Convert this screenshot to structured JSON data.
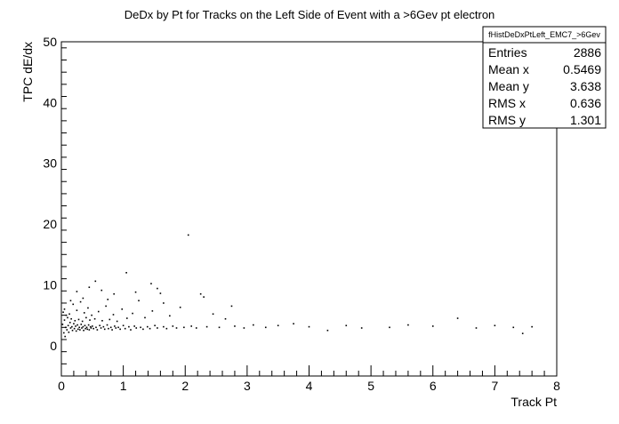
{
  "chart_data": {
    "type": "scatter",
    "title": "DeDx by Pt for Tracks on the Left Side of Event with a >6Gev pt electron",
    "xlabel": "Track Pt",
    "ylabel": "TPC dE/dx",
    "xlim": [
      0,
      8
    ],
    "ylim": [
      -5,
      50
    ],
    "x_ticks": [
      "0",
      "1",
      "2",
      "3",
      "4",
      "5",
      "6",
      "7",
      "8"
    ],
    "y_ticks": [
      "0",
      "10",
      "20",
      "30",
      "40",
      "50"
    ],
    "x_tick_values": [
      0,
      1,
      2,
      3,
      4,
      5,
      6,
      7,
      8
    ],
    "y_tick_values": [
      0,
      10,
      20,
      30,
      40,
      50
    ],
    "grid": false,
    "marker_color": "#000000",
    "stats_box": {
      "name": "fHistDeDxPtLeft_EMC7_>6Gev",
      "position": "top-right",
      "rows": [
        {
          "label": "Entries",
          "value": "2886"
        },
        {
          "label": "Mean x",
          "value": "0.5469"
        },
        {
          "label": "Mean y",
          "value": "3.638"
        },
        {
          "label": "RMS x",
          "value": "0.636"
        },
        {
          "label": "RMS y",
          "value": "1.301"
        }
      ]
    },
    "points": [
      [
        0.02,
        3.5
      ],
      [
        0.03,
        5.5
      ],
      [
        0.04,
        2.1
      ],
      [
        0.05,
        6.0
      ],
      [
        0.05,
        4.2
      ],
      [
        0.06,
        1.5
      ],
      [
        0.07,
        3.0
      ],
      [
        0.08,
        5.0
      ],
      [
        0.09,
        2.6
      ],
      [
        0.1,
        4.6
      ],
      [
        0.11,
        3.3
      ],
      [
        0.12,
        2.2
      ],
      [
        0.13,
        5.2
      ],
      [
        0.14,
        3.8
      ],
      [
        0.15,
        2.9
      ],
      [
        0.16,
        4.4
      ],
      [
        0.17,
        3.1
      ],
      [
        0.18,
        2.5
      ],
      [
        0.19,
        6.8
      ],
      [
        0.2,
        3.6
      ],
      [
        0.21,
        2.8
      ],
      [
        0.22,
        4.1
      ],
      [
        0.23,
        3.2
      ],
      [
        0.24,
        2.4
      ],
      [
        0.25,
        5.8
      ],
      [
        0.26,
        3.4
      ],
      [
        0.27,
        2.7
      ],
      [
        0.28,
        4.3
      ],
      [
        0.29,
        3.0
      ],
      [
        0.3,
        2.6
      ],
      [
        0.31,
        7.2
      ],
      [
        0.32,
        3.5
      ],
      [
        0.33,
        2.9
      ],
      [
        0.34,
        4.0
      ],
      [
        0.35,
        3.1
      ],
      [
        0.36,
        2.5
      ],
      [
        0.37,
        5.4
      ],
      [
        0.38,
        3.3
      ],
      [
        0.39,
        2.8
      ],
      [
        0.4,
        4.6
      ],
      [
        0.41,
        3.0
      ],
      [
        0.42,
        2.7
      ],
      [
        0.43,
        6.2
      ],
      [
        0.44,
        3.4
      ],
      [
        0.45,
        2.6
      ],
      [
        0.46,
        4.2
      ],
      [
        0.47,
        3.1
      ],
      [
        0.48,
        2.9
      ],
      [
        0.49,
        5.0
      ],
      [
        0.5,
        3.2
      ],
      [
        0.52,
        2.8
      ],
      [
        0.54,
        4.4
      ],
      [
        0.56,
        3.0
      ],
      [
        0.58,
        2.6
      ],
      [
        0.6,
        5.6
      ],
      [
        0.62,
        3.3
      ],
      [
        0.64,
        2.9
      ],
      [
        0.66,
        4.1
      ],
      [
        0.68,
        3.1
      ],
      [
        0.7,
        2.7
      ],
      [
        0.72,
        6.5
      ],
      [
        0.74,
        3.4
      ],
      [
        0.76,
        2.8
      ],
      [
        0.78,
        4.3
      ],
      [
        0.8,
        3.0
      ],
      [
        0.82,
        2.6
      ],
      [
        0.84,
        5.1
      ],
      [
        0.86,
        3.2
      ],
      [
        0.88,
        2.9
      ],
      [
        0.9,
        4.0
      ],
      [
        0.92,
        3.0
      ],
      [
        0.95,
        2.7
      ],
      [
        0.98,
        6.0
      ],
      [
        1.0,
        3.3
      ],
      [
        1.03,
        2.8
      ],
      [
        1.06,
        4.5
      ],
      [
        1.09,
        3.1
      ],
      [
        1.12,
        2.6
      ],
      [
        1.15,
        5.3
      ],
      [
        1.18,
        3.2
      ],
      [
        1.21,
        2.9
      ],
      [
        1.25,
        7.4
      ],
      [
        1.28,
        3.0
      ],
      [
        1.32,
        2.7
      ],
      [
        1.35,
        4.6
      ],
      [
        1.39,
        3.1
      ],
      [
        1.43,
        2.8
      ],
      [
        1.47,
        5.7
      ],
      [
        1.51,
        3.3
      ],
      [
        1.55,
        2.9
      ],
      [
        1.6,
        8.6
      ],
      [
        1.65,
        3.1
      ],
      [
        1.7,
        2.8
      ],
      [
        1.75,
        4.9
      ],
      [
        1.8,
        3.2
      ],
      [
        1.86,
        2.9
      ],
      [
        1.92,
        6.3
      ],
      [
        1.98,
        3.0
      ],
      [
        2.05,
        18.2
      ],
      [
        2.1,
        3.2
      ],
      [
        2.18,
        2.9
      ],
      [
        2.25,
        8.5
      ],
      [
        2.35,
        3.1
      ],
      [
        2.45,
        5.2
      ],
      [
        2.55,
        3.0
      ],
      [
        2.65,
        4.4
      ],
      [
        2.8,
        3.2
      ],
      [
        2.95,
        2.9
      ],
      [
        3.1,
        3.4
      ],
      [
        3.3,
        3.0
      ],
      [
        3.5,
        3.3
      ],
      [
        3.75,
        3.6
      ],
      [
        4.0,
        3.1
      ],
      [
        4.3,
        2.5
      ],
      [
        4.6,
        3.3
      ],
      [
        4.85,
        2.9
      ],
      [
        5.3,
        3.0
      ],
      [
        5.6,
        3.4
      ],
      [
        6.0,
        3.2
      ],
      [
        6.4,
        4.5
      ],
      [
        6.7,
        2.9
      ],
      [
        7.0,
        3.3
      ],
      [
        7.3,
        3.0
      ],
      [
        7.45,
        2.0
      ],
      [
        7.6,
        3.1
      ],
      [
        1.05,
        12.0
      ],
      [
        1.45,
        10.2
      ],
      [
        0.55,
        10.6
      ],
      [
        1.55,
        9.4
      ],
      [
        2.3,
        8.0
      ],
      [
        0.65,
        9.1
      ],
      [
        0.85,
        8.5
      ],
      [
        1.2,
        8.8
      ],
      [
        0.35,
        7.8
      ],
      [
        0.75,
        7.6
      ],
      [
        1.65,
        7.0
      ],
      [
        2.75,
        6.5
      ],
      [
        0.25,
        8.9
      ],
      [
        0.45,
        9.6
      ],
      [
        0.15,
        7.4
      ]
    ]
  }
}
